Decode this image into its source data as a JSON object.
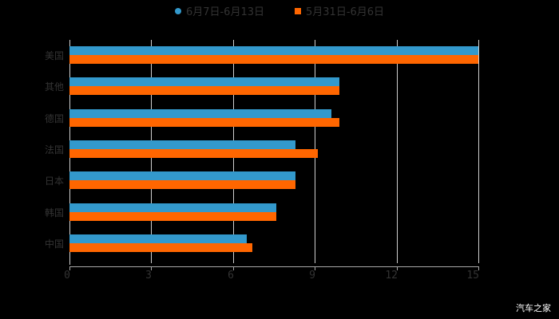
{
  "chart_data": {
    "type": "bar",
    "orientation": "horizontal",
    "title": "",
    "xlabel": "",
    "ylabel": "",
    "xlim": [
      0,
      15
    ],
    "x_ticks": [
      "0",
      "3",
      "6",
      "9",
      "12",
      "15"
    ],
    "grid": true,
    "legend_position": "top",
    "categories": [
      "美国",
      "其他",
      "德国",
      "法国",
      "日本",
      "韩国",
      "中国"
    ],
    "series": [
      {
        "name": "6月7日-6月13日",
        "color": "#3399cc",
        "values": [
          15.0,
          9.9,
          9.6,
          8.3,
          8.3,
          7.6,
          6.5
        ]
      },
      {
        "name": "5月31日-6月6日",
        "color": "#ff6600",
        "values": [
          15.0,
          9.9,
          9.9,
          9.1,
          8.3,
          7.6,
          6.7
        ]
      }
    ]
  },
  "legend": {
    "items": [
      {
        "label": "6月7日-6月13日",
        "color": "#3399cc"
      },
      {
        "label": "5月31日-6月6日",
        "color": "#ff6600"
      }
    ]
  },
  "watermark": "汽车之家"
}
